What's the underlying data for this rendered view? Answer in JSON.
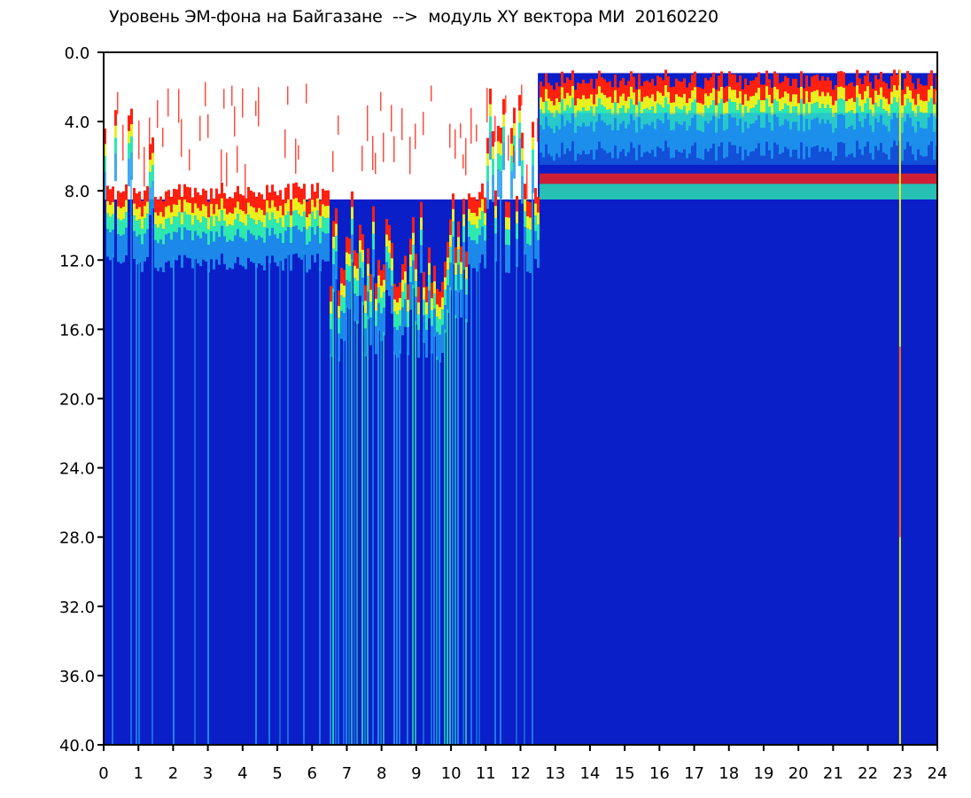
{
  "chart_data": {
    "type": "heatmap",
    "title": "Уровень ЭМ-фона на Байгазане  -->  модуль XY вектора МИ  20160220",
    "xlabel": "",
    "ylabel": "",
    "x_ticks": [
      "0",
      "1",
      "2",
      "3",
      "4",
      "5",
      "6",
      "7",
      "8",
      "9",
      "10",
      "11",
      "12",
      "13",
      "14",
      "15",
      "16",
      "17",
      "18",
      "19",
      "20",
      "21",
      "22",
      "23",
      "24"
    ],
    "y_ticks": [
      "0.0",
      "4.0",
      "8.0",
      "12.0",
      "16.0",
      "20.0",
      "24.0",
      "28.0",
      "32.0",
      "36.0",
      "40.0"
    ],
    "xlim": [
      0,
      24
    ],
    "ylim": [
      0,
      40
    ],
    "y_inverted": true,
    "colors": {
      "background": "#ffffff",
      "low": "#0a1fc8",
      "mid_low": "#1e9bf0",
      "mid": "#2ee8b0",
      "mid_high": "#e8f020",
      "high": "#ff2010"
    },
    "features": {
      "quiet_ceiling_y": 8.0,
      "active_period_hours": [
        6.5,
        10.5
      ],
      "active_period_ceiling_y": 14.0,
      "night_upper_band_hours": [
        12.5,
        24
      ],
      "night_upper_band_y": [
        1.0,
        2.5
      ],
      "night_secondary_band_y": [
        7.0,
        8.5
      ],
      "bright_vertical_line_hour": 22.9
    }
  }
}
